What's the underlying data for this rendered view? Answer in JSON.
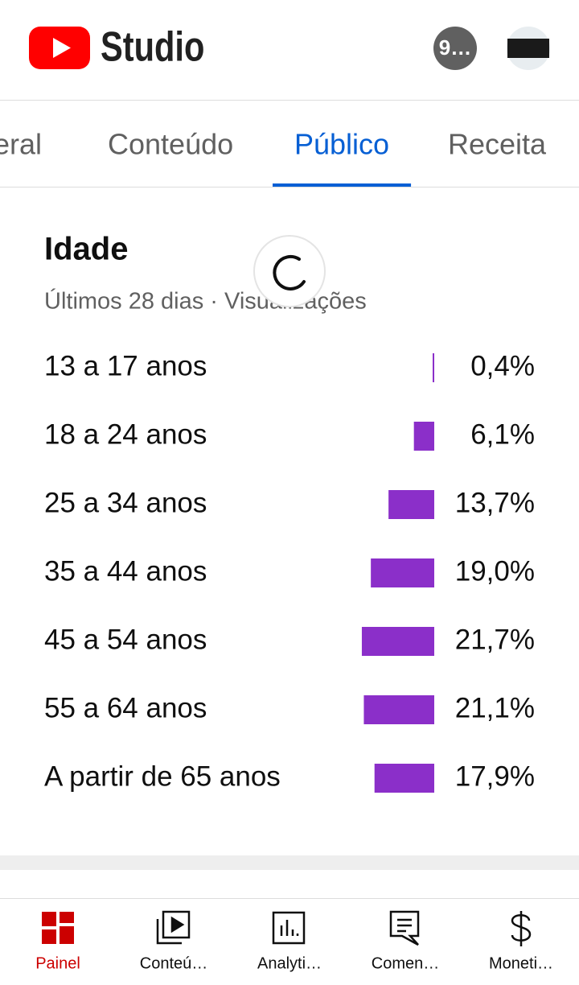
{
  "header": {
    "brand": "Studio",
    "badge": "9…"
  },
  "tabs": [
    "geral",
    "Conteúdo",
    "Público",
    "Receita"
  ],
  "active_tab": 2,
  "chart_data": {
    "type": "bar",
    "title": "Idade",
    "subtitle": "Últimos 28 dias · Visualizações",
    "categories": [
      "13 a 17 anos",
      "18 a 24 anos",
      "25 a 34 anos",
      "35 a 44 anos",
      "45 a 54 anos",
      "55 a 64 anos",
      "A partir de 65 anos"
    ],
    "values": [
      0.4,
      6.1,
      13.7,
      19.0,
      21.7,
      21.1,
      17.9
    ],
    "value_labels": [
      "0,4%",
      "6,1%",
      "13,7%",
      "19,0%",
      "21,7%",
      "21,1%",
      "17,9%"
    ],
    "color": "#8b2fc9"
  },
  "nav": [
    "Painel",
    "Conteú…",
    "Analyti…",
    "Comen…",
    "Moneti…"
  ],
  "active_nav": 0
}
